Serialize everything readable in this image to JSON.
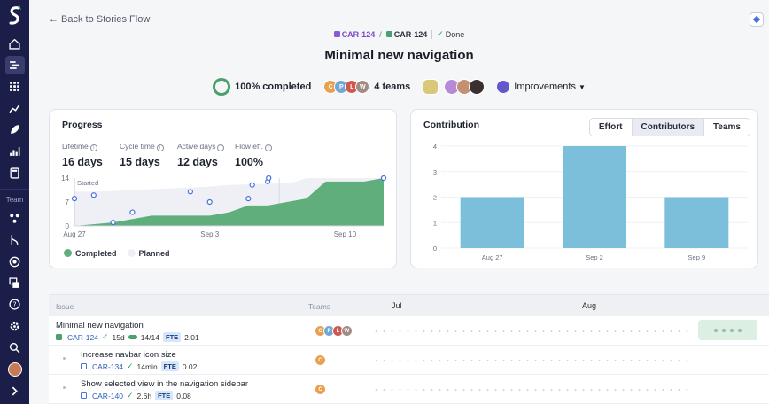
{
  "nav": {
    "team_label": "Team",
    "items_top": [
      "home-icon",
      "stories-icon",
      "grid-icon",
      "trend-icon",
      "rocket-icon",
      "bars-icon",
      "calculator-icon"
    ],
    "items_team": [
      "network-icon",
      "merge-icon",
      "target-icon",
      "stack-icon"
    ],
    "items_bottom": [
      "help-icon",
      "settings-icon",
      "search-icon",
      "avatar",
      "expand-icon"
    ]
  },
  "header": {
    "back_label": "Back to Stories Flow",
    "crumb_parent": "CAR-124",
    "crumb_current": "CAR-124",
    "status": "Done",
    "title": "Minimal new navigation"
  },
  "summary": {
    "completed": "100% completed",
    "teams_label": "4 teams",
    "team_avatars": [
      {
        "letter": "C",
        "color": "#e8a04f"
      },
      {
        "letter": "P",
        "color": "#6fa8d6"
      },
      {
        "letter": "L",
        "color": "#d0574e"
      },
      {
        "letter": "W",
        "color": "#a08c85"
      }
    ],
    "category": "Improvements"
  },
  "progress": {
    "title": "Progress",
    "stats": [
      {
        "label": "Lifetime",
        "value": "16 days"
      },
      {
        "label": "Cycle time",
        "value": "15 days"
      },
      {
        "label": "Active days",
        "value": "12 days"
      },
      {
        "label": "Flow eff.",
        "value": "100%"
      }
    ],
    "legend": {
      "completed": "Completed",
      "planned": "Planned"
    },
    "colors": {
      "completed": "#5fae7b",
      "planned": "#eef0f6",
      "point": "#4a6fe0"
    }
  },
  "contribution": {
    "title": "Contribution",
    "tabs": [
      {
        "label": "Effort",
        "active": false
      },
      {
        "label": "Contributors",
        "active": true
      },
      {
        "label": "Teams",
        "active": false
      }
    ]
  },
  "chart_data": [
    {
      "type": "area",
      "title": "Progress",
      "x_ticks": [
        "Aug 27",
        "Sep 3",
        "Sep 10"
      ],
      "y_ticks": [
        "14",
        "7",
        "0"
      ],
      "ylim": [
        0,
        14
      ],
      "annotation": "Started",
      "series": [
        {
          "name": "Completed",
          "x_days": [
            0,
            2,
            3,
            4,
            5,
            6,
            7,
            8,
            9,
            10,
            11,
            12,
            13,
            14,
            15,
            16
          ],
          "values": [
            0,
            1,
            2,
            3,
            3,
            3,
            3,
            4,
            6,
            6,
            7,
            8,
            13,
            13,
            13,
            14
          ]
        },
        {
          "name": "Planned",
          "x_days": [
            0,
            1,
            3,
            5,
            7,
            8,
            11,
            11.5,
            12,
            16
          ],
          "values": [
            10,
            10,
            10.5,
            11,
            11.5,
            12,
            12.5,
            13,
            14,
            14
          ]
        }
      ],
      "points": [
        {
          "x_day": 0,
          "value": 8
        },
        {
          "x_day": 1,
          "value": 9
        },
        {
          "x_day": 2,
          "value": 1
        },
        {
          "x_day": 3,
          "value": 4
        },
        {
          "x_day": 6,
          "value": 10
        },
        {
          "x_day": 7,
          "value": 7
        },
        {
          "x_day": 9,
          "value": 8
        },
        {
          "x_day": 9.2,
          "value": 12
        },
        {
          "x_day": 10,
          "value": 13
        },
        {
          "x_day": 10.05,
          "value": 14
        },
        {
          "x_day": 16,
          "value": 14
        }
      ]
    },
    {
      "type": "bar",
      "title": "Contribution",
      "categories": [
        "Aug 27",
        "Sep 2",
        "Sep 9"
      ],
      "values": [
        2,
        4,
        2
      ],
      "ylim": [
        0,
        4
      ],
      "y_ticks": [
        4,
        3,
        2,
        1,
        0
      ],
      "color": "#7bbfdb"
    }
  ],
  "table": {
    "headers": {
      "issue": "Issue",
      "teams": "Teams",
      "month1": "Jul",
      "month2": "Aug"
    },
    "rows": [
      {
        "title": "Minimal new navigation",
        "key": "CAR-124",
        "duration": "15d",
        "progress": "14/14",
        "fte_label": "FTE",
        "fte": "2.01",
        "teams": [
          "C",
          "P",
          "L",
          "W"
        ]
      },
      {
        "title": "Increase navbar icon size",
        "key": "CAR-134",
        "duration": "14min",
        "fte_label": "FTE",
        "fte": "0.02",
        "teams": [
          "C"
        ]
      },
      {
        "title": "Show selected view in the navigation sidebar",
        "key": "CAR-140",
        "duration": "2.6h",
        "fte_label": "FTE",
        "fte": "0.08",
        "teams": [
          "C"
        ]
      }
    ]
  }
}
